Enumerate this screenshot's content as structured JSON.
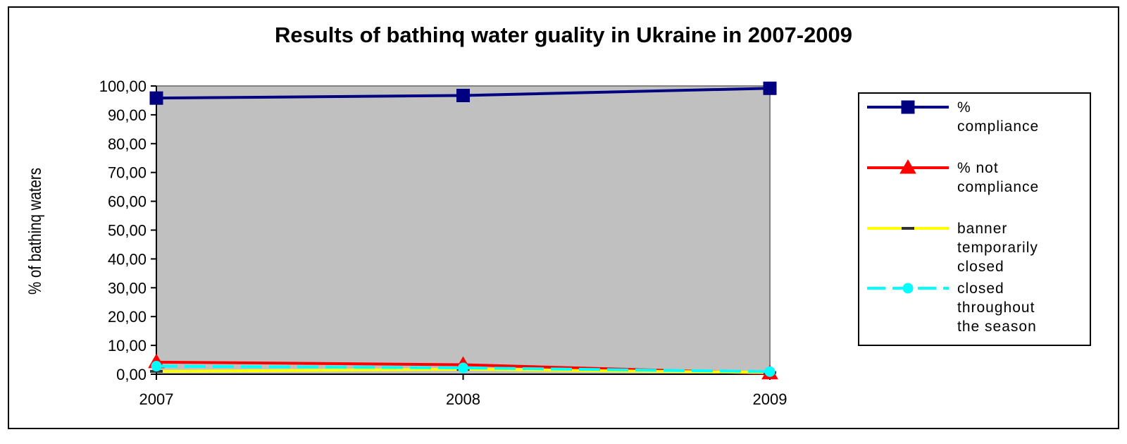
{
  "chart_data": {
    "type": "line",
    "title": "Results of bathinq water guality in Ukraine in 2007-2009",
    "ylabel": "% of bathinq waters",
    "xlabel": "",
    "categories": [
      "2007",
      "2008",
      "2009"
    ],
    "ylim": [
      0,
      100
    ],
    "yticks": [
      "0,00",
      "10,00",
      "20,00",
      "30,00",
      "40,00",
      "50,00",
      "60,00",
      "70,00",
      "80,00",
      "90,00",
      "100,00"
    ],
    "grid": false,
    "plot_background": "#c0c0c0",
    "legend_position": "right",
    "series": [
      {
        "name": "% compliance",
        "legend_lines": [
          "%",
          "compliance"
        ],
        "color": "#000080",
        "marker": "square",
        "dash": "solid",
        "values": [
          95.8,
          96.7,
          99.2
        ]
      },
      {
        "name": "% not compliance",
        "legend_lines": [
          "% not",
          "compliance"
        ],
        "color": "#ff0000",
        "marker": "triangle",
        "dash": "solid",
        "values": [
          4.2,
          3.3,
          0.3
        ]
      },
      {
        "name": "banner temporarily closed",
        "legend_lines": [
          "banner",
          "temporarily",
          "closed"
        ],
        "color": "#ffff00",
        "marker": "dash",
        "dash": "solid",
        "values": [
          1.0,
          1.7,
          0.6
        ]
      },
      {
        "name": "closed throughout the season",
        "legend_lines": [
          "closed",
          "throughout",
          "the season"
        ],
        "color": "#00ffff",
        "marker": "circle",
        "dash": "dashed",
        "values": [
          2.8,
          2.2,
          0.9
        ]
      }
    ]
  }
}
